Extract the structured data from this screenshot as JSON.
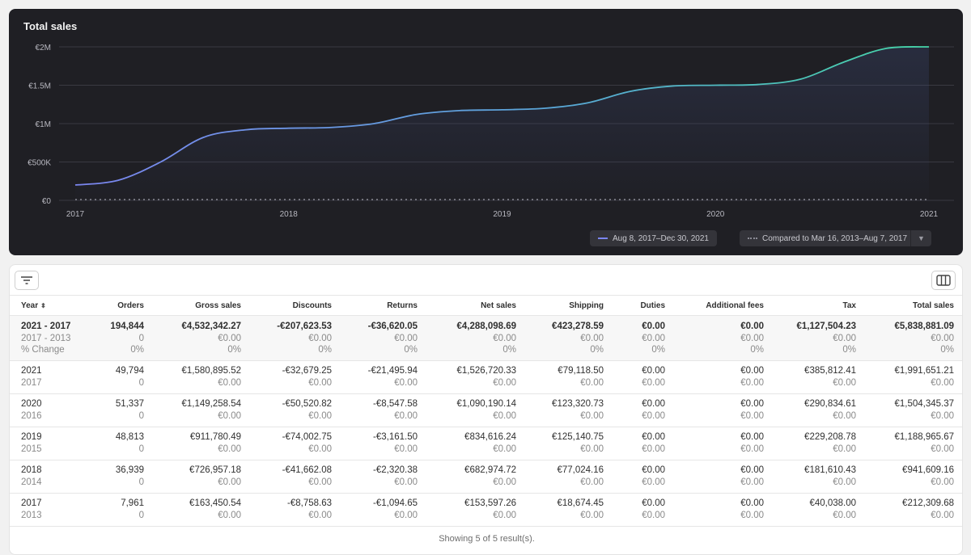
{
  "chart": {
    "title": "Total sales",
    "legend_primary": "Aug 8, 2017–Dec 30, 2021",
    "legend_compare": "Compared to Mar 16, 2013–Aug 7, 2017"
  },
  "chart_data": {
    "type": "area",
    "title": "Total sales",
    "y_ticks": [
      "€0",
      "€500K",
      "€1M",
      "€1.5M",
      "€2M"
    ],
    "x_ticks": [
      "2017",
      "2018",
      "2019",
      "2020",
      "2021"
    ],
    "ylim": [
      0,
      2000000
    ],
    "xlim": [
      2017,
      2021
    ],
    "grid": true,
    "legend_position": "bottom-right",
    "series": [
      {
        "name": "Aug 8, 2017–Dec 30, 2021",
        "color": "#7b86f0",
        "x": [
          2017.0,
          2017.2,
          2017.4,
          2017.6,
          2017.8,
          2018.0,
          2018.2,
          2018.4,
          2018.6,
          2018.8,
          2019.0,
          2019.2,
          2019.4,
          2019.6,
          2019.8,
          2020.0,
          2020.2,
          2020.4,
          2020.6,
          2020.8,
          2021.0
        ],
        "values": [
          200000,
          260000,
          500000,
          820000,
          920000,
          940000,
          950000,
          1000000,
          1120000,
          1170000,
          1180000,
          1200000,
          1270000,
          1420000,
          1490000,
          1500000,
          1510000,
          1580000,
          1800000,
          1980000,
          2000000
        ]
      },
      {
        "name": "Compared to Mar 16, 2013–Aug 7, 2017",
        "color": "#8b8b95",
        "x": [
          2017.0,
          2021.0
        ],
        "values": [
          0,
          0
        ]
      }
    ]
  },
  "table": {
    "headers": [
      "Year",
      "Orders",
      "Gross sales",
      "Discounts",
      "Returns",
      "Net sales",
      "Shipping",
      "Duties",
      "Additional fees",
      "Tax",
      "Total sales"
    ],
    "summary": {
      "lines": [
        [
          "2021 - 2017",
          "194,844",
          "€4,532,342.27",
          "-€207,623.53",
          "-€36,620.05",
          "€4,288,098.69",
          "€423,278.59",
          "€0.00",
          "€0.00",
          "€1,127,504.23",
          "€5,838,881.09"
        ],
        [
          "2017 - 2013",
          "0",
          "€0.00",
          "€0.00",
          "€0.00",
          "€0.00",
          "€0.00",
          "€0.00",
          "€0.00",
          "€0.00",
          "€0.00"
        ],
        [
          "% Change",
          "0%",
          "0%",
          "0%",
          "0%",
          "0%",
          "0%",
          "0%",
          "0%",
          "0%",
          "0%"
        ]
      ]
    },
    "rows": [
      {
        "main": [
          "2021",
          "49,794",
          "€1,580,895.52",
          "-€32,679.25",
          "-€21,495.94",
          "€1,526,720.33",
          "€79,118.50",
          "€0.00",
          "€0.00",
          "€385,812.41",
          "€1,991,651.21"
        ],
        "sub": [
          "2017",
          "0",
          "€0.00",
          "€0.00",
          "€0.00",
          "€0.00",
          "€0.00",
          "€0.00",
          "€0.00",
          "€0.00",
          "€0.00"
        ]
      },
      {
        "main": [
          "2020",
          "51,337",
          "€1,149,258.54",
          "-€50,520.82",
          "-€8,547.58",
          "€1,090,190.14",
          "€123,320.73",
          "€0.00",
          "€0.00",
          "€290,834.61",
          "€1,504,345.37"
        ],
        "sub": [
          "2016",
          "0",
          "€0.00",
          "€0.00",
          "€0.00",
          "€0.00",
          "€0.00",
          "€0.00",
          "€0.00",
          "€0.00",
          "€0.00"
        ]
      },
      {
        "main": [
          "2019",
          "48,813",
          "€911,780.49",
          "-€74,002.75",
          "-€3,161.50",
          "€834,616.24",
          "€125,140.75",
          "€0.00",
          "€0.00",
          "€229,208.78",
          "€1,188,965.67"
        ],
        "sub": [
          "2015",
          "0",
          "€0.00",
          "€0.00",
          "€0.00",
          "€0.00",
          "€0.00",
          "€0.00",
          "€0.00",
          "€0.00",
          "€0.00"
        ]
      },
      {
        "main": [
          "2018",
          "36,939",
          "€726,957.18",
          "-€41,662.08",
          "-€2,320.38",
          "€682,974.72",
          "€77,024.16",
          "€0.00",
          "€0.00",
          "€181,610.43",
          "€941,609.16"
        ],
        "sub": [
          "2014",
          "0",
          "€0.00",
          "€0.00",
          "€0.00",
          "€0.00",
          "€0.00",
          "€0.00",
          "€0.00",
          "€0.00",
          "€0.00"
        ]
      },
      {
        "main": [
          "2017",
          "7,961",
          "€163,450.54",
          "-€8,758.63",
          "-€1,094.65",
          "€153,597.26",
          "€18,674.45",
          "€0.00",
          "€0.00",
          "€40,038.00",
          "€212,309.68"
        ],
        "sub": [
          "2013",
          "0",
          "€0.00",
          "€0.00",
          "€0.00",
          "€0.00",
          "€0.00",
          "€0.00",
          "€0.00",
          "€0.00",
          "€0.00"
        ]
      }
    ],
    "footer": "Showing 5 of 5 result(s).",
    "icons": {
      "filter": "filter-icon",
      "columns": "columns-icon",
      "sort": "sort-icon"
    }
  }
}
